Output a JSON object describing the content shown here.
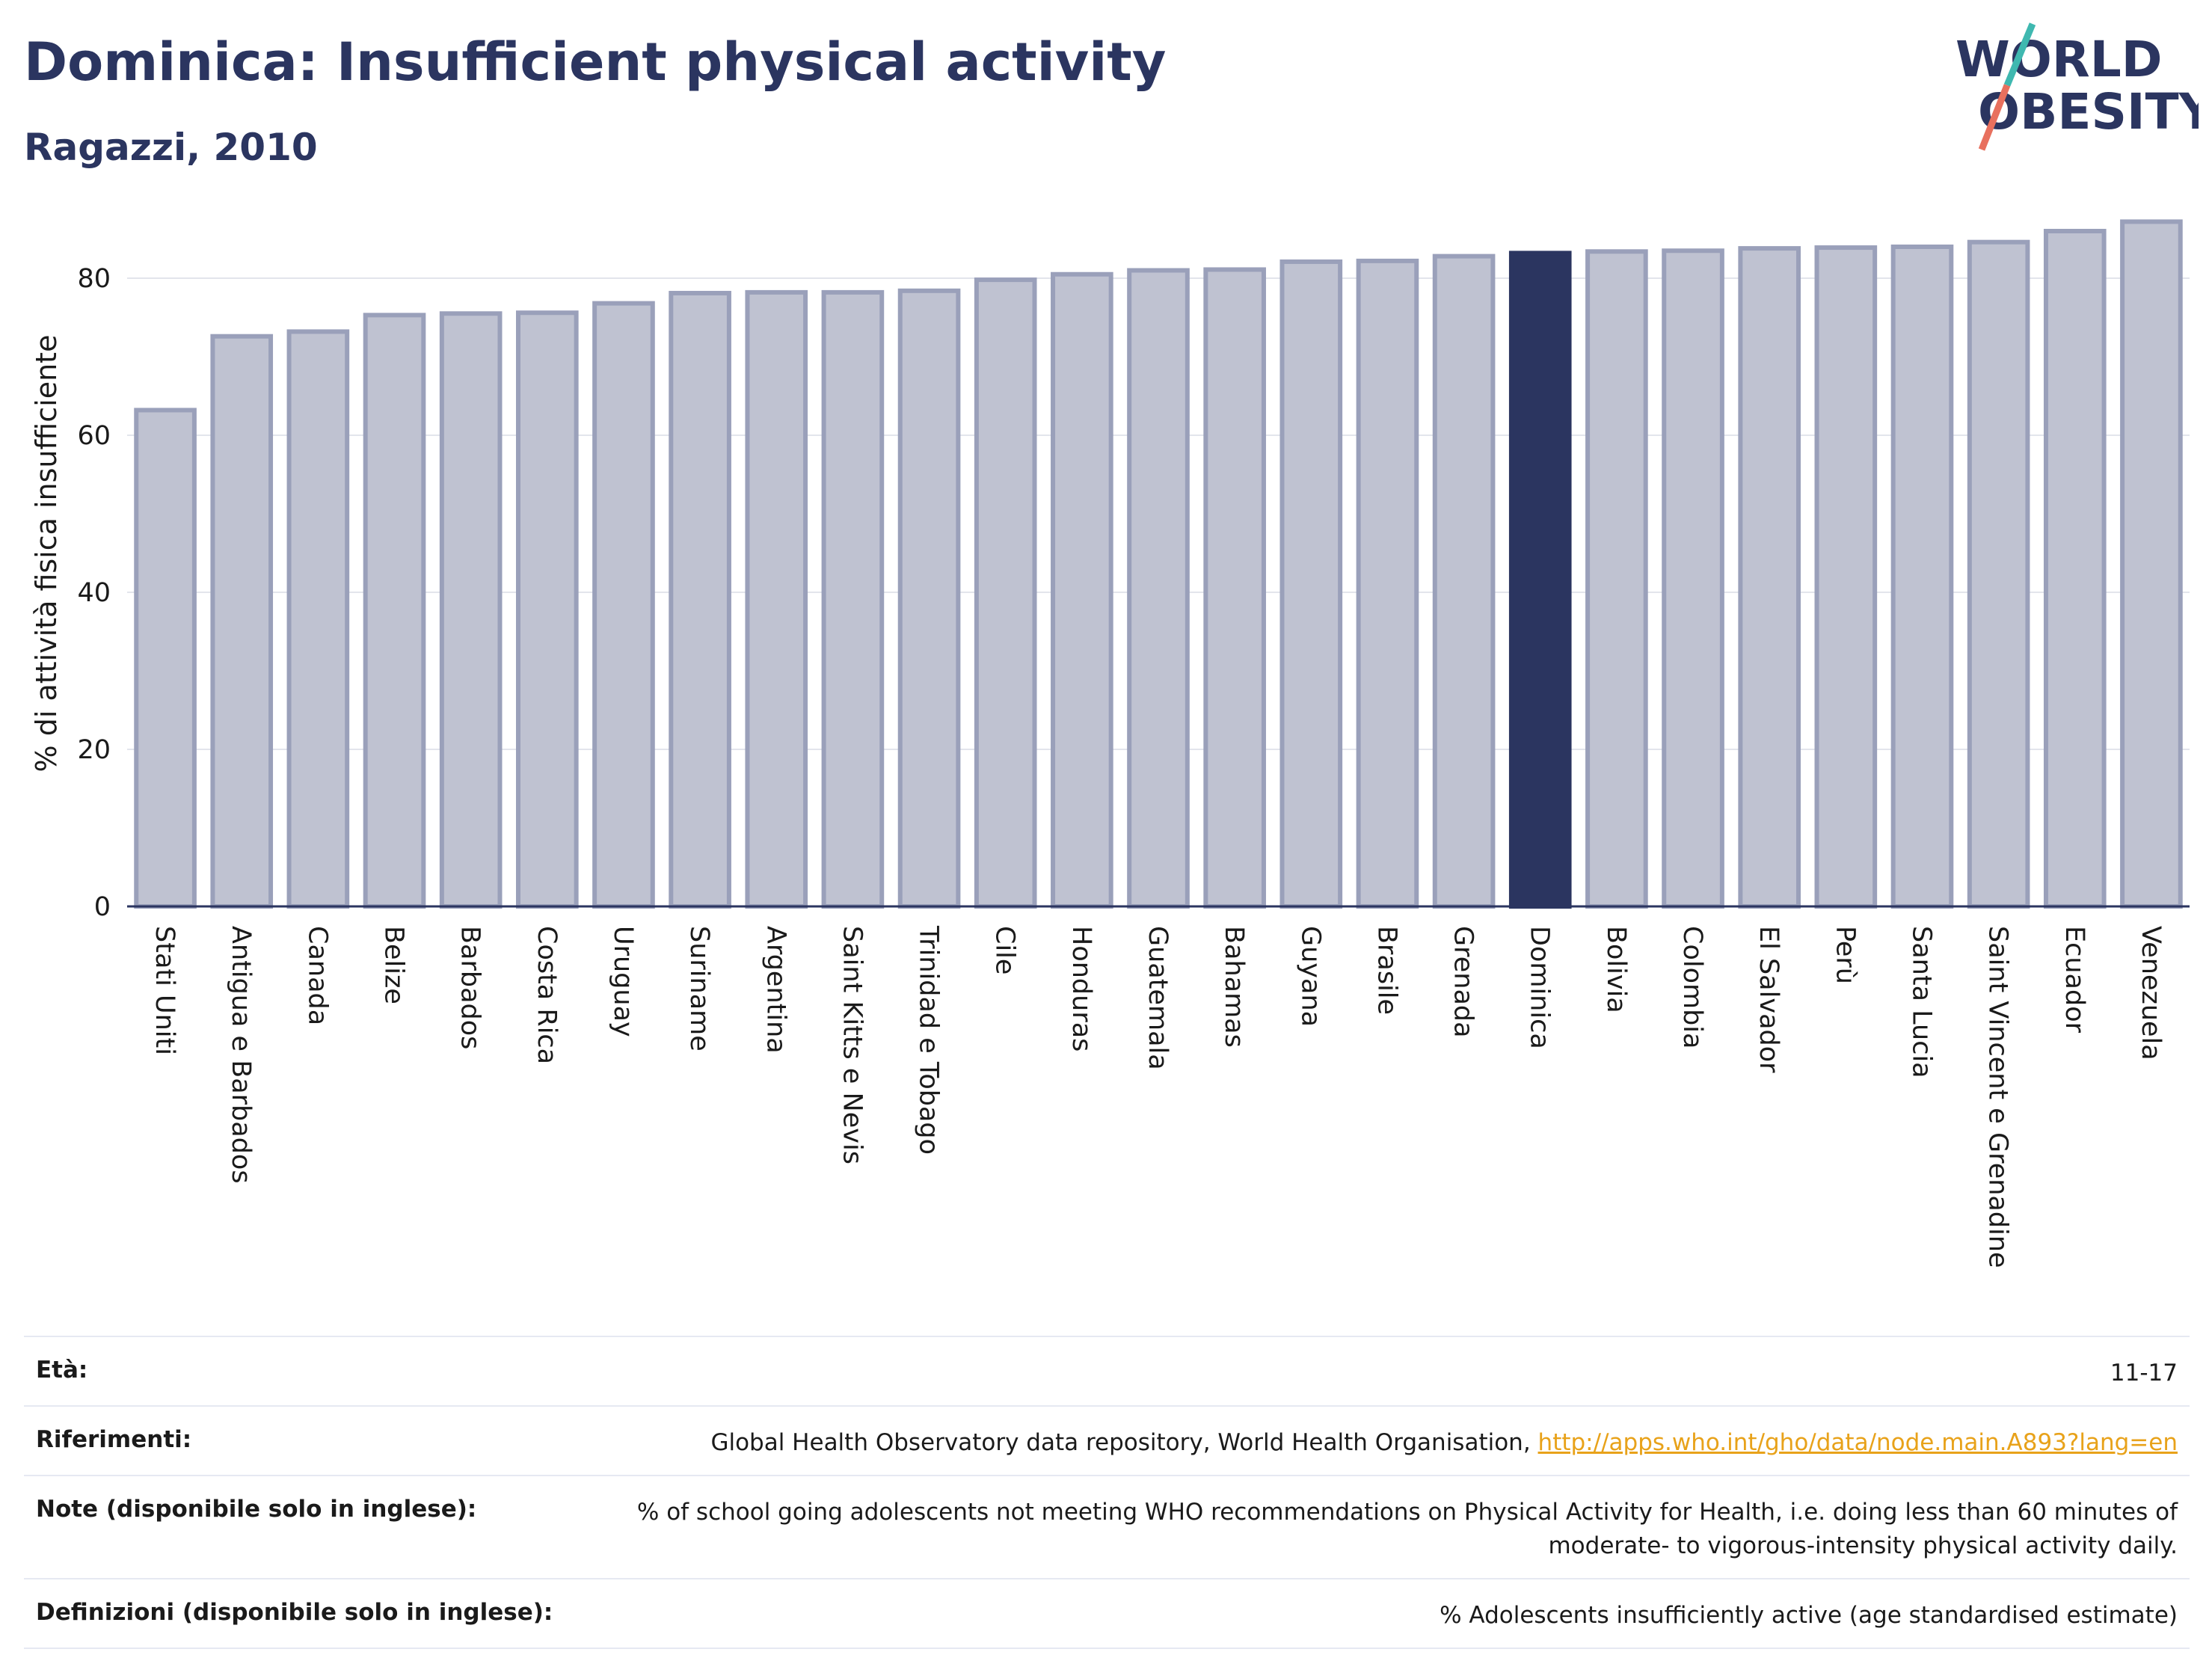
{
  "header": {
    "title": "Dominica: Insufficient physical activity",
    "subtitle": "Ragazzi, 2010",
    "logo_line1": "WORLD",
    "logo_line2": "OBESITY"
  },
  "colors": {
    "bar": "#bfc2d1",
    "bar_edge": "#9aa0ba",
    "highlight": "#2b3560",
    "grid": "#e3e5ec",
    "axis": "#2b3560",
    "link": "#e8a21a",
    "logo_slash_teal": "#3fb8b0",
    "logo_slash_coral": "#e8705e"
  },
  "chart_data": {
    "type": "bar",
    "ylabel": "% di attività fisica insufficiente",
    "ylim": [
      0,
      88
    ],
    "yticks": [
      0,
      20,
      40,
      60,
      80
    ],
    "grid": true,
    "highlight": "Dominica",
    "categories": [
      "Stati Uniti",
      "Antigua e Barbados",
      "Canada",
      "Belize",
      "Barbados",
      "Costa Rica",
      "Uruguay",
      "Suriname",
      "Argentina",
      "Saint Kitts e Nevis",
      "Trinidad e Tobago",
      "Cile",
      "Honduras",
      "Guatemala",
      "Bahamas",
      "Guyana",
      "Brasile",
      "Grenada",
      "Dominica",
      "Bolivia",
      "Colombia",
      "El Salvador",
      "Perù",
      "Santa Lucia",
      "Saint Vincent e Grenadine",
      "Ecuador",
      "Venezuela"
    ],
    "values": [
      63.2,
      72.6,
      73.2,
      75.3,
      75.5,
      75.6,
      76.8,
      78.1,
      78.2,
      78.2,
      78.4,
      79.8,
      80.5,
      81.0,
      81.1,
      82.1,
      82.2,
      82.8,
      83.2,
      83.4,
      83.5,
      83.8,
      83.9,
      84.0,
      84.6,
      86.0,
      87.2
    ]
  },
  "footer": {
    "rows": [
      {
        "label": "Età:",
        "value": "11-17"
      },
      {
        "label": "Riferimenti:",
        "value": "Global Health Observatory data repository, World Health Organisation, ",
        "link": "http://apps.who.int/gho/data/node.main.A893?lang=en"
      },
      {
        "label": "Note (disponibile solo in inglese):",
        "value": "% of school going adolescents not meeting WHO recommendations on Physical Activity for Health, i.e. doing less than 60 minutes of moderate- to vigorous-intensity physical activity daily."
      },
      {
        "label": "Definizioni (disponibile solo in inglese):",
        "value": "% Adolescents insufficiently active (age standardised estimate)"
      }
    ]
  }
}
